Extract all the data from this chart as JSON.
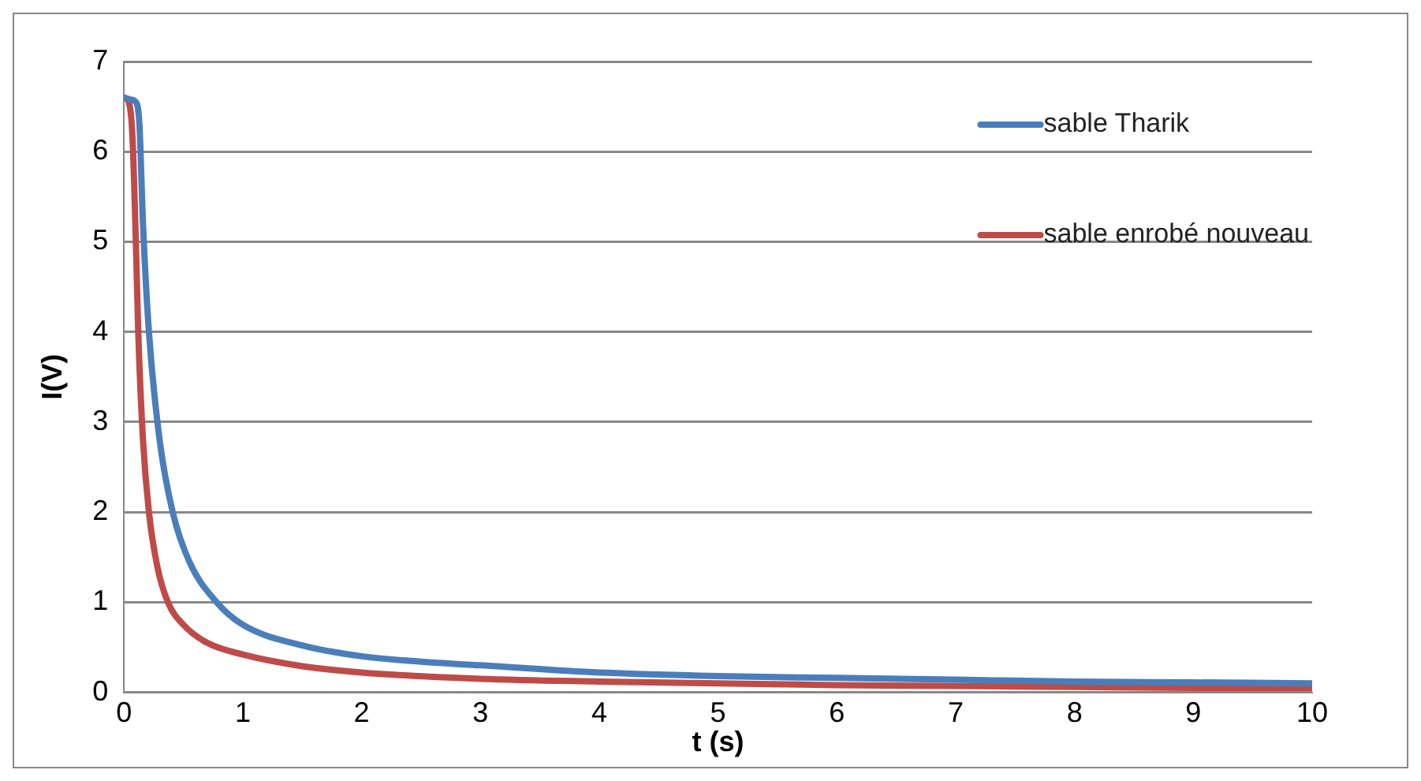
{
  "chart_data": {
    "type": "line",
    "xlabel": "t (s)",
    "ylabel": "I(V)",
    "xlim": [
      0,
      10
    ],
    "xticks": [
      0,
      1,
      2,
      3,
      4,
      5,
      6,
      7,
      8,
      9,
      10
    ],
    "ylim": [
      0,
      7
    ],
    "yticks": [
      0,
      1,
      2,
      3,
      4,
      5,
      6,
      7
    ],
    "grid": "y",
    "legend": "top right",
    "marker": "none",
    "line_style": "solid",
    "series": [
      {
        "name": "sable Tharik",
        "color": "#4a7ebb",
        "x": [
          0,
          0.05,
          0.1,
          0.13,
          0.16,
          0.21,
          0.3,
          0.41,
          0.55,
          0.78,
          1,
          1.5,
          2,
          2.5,
          3,
          4,
          5,
          6,
          7,
          8,
          9,
          10
        ],
        "values": [
          6.6,
          6.58,
          6.55,
          6.3,
          5.2,
          4,
          2.8,
          2,
          1.45,
          1,
          0.75,
          0.52,
          0.4,
          0.34,
          0.3,
          0.22,
          0.18,
          0.16,
          0.14,
          0.12,
          0.11,
          0.1
        ]
      },
      {
        "name": "sable enrobé nouveau",
        "color": "#be4b48",
        "x": [
          0,
          0.04,
          0.07,
          0.1,
          0.12,
          0.16,
          0.21,
          0.28,
          0.37,
          0.5,
          0.7,
          1,
          1.5,
          2,
          3,
          4,
          5,
          6,
          7,
          8,
          9,
          10
        ],
        "values": [
          6.6,
          6.55,
          6.2,
          5,
          4,
          2.8,
          2,
          1.4,
          1,
          0.75,
          0.55,
          0.42,
          0.29,
          0.22,
          0.15,
          0.12,
          0.1,
          0.08,
          0.07,
          0.06,
          0.05,
          0.05
        ]
      }
    ]
  }
}
